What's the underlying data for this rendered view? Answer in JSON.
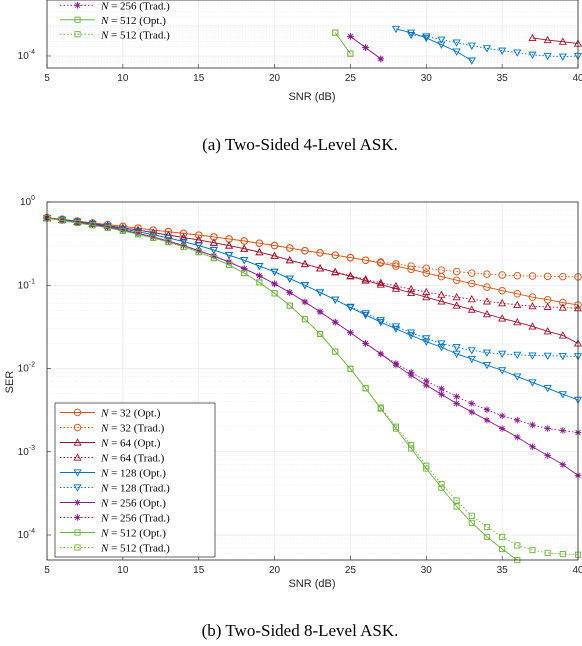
{
  "captions": {
    "a": "(a) Two-Sided 4-Level ASK.",
    "b": "(b) Two-Sided 8-Level ASK."
  },
  "chart_data": [
    {
      "type": "line",
      "title": "",
      "caption": "(a) Two-Sided 4-Level ASK.",
      "xlabel": "SNR (dB)",
      "ylabel": "",
      "xlim": [
        5,
        40
      ],
      "ylim_log10": [
        -4.4,
        0
      ],
      "y_scale": "log",
      "grid": true,
      "x_ticks": [
        "5",
        "10",
        "15",
        "20",
        "25",
        "30",
        "35",
        "40"
      ],
      "y_tick_labels": [
        {
          "base": "10",
          "exp": "-4"
        }
      ],
      "legend_visible": [
        {
          "N": "256",
          "kind": "(Trad.)"
        },
        {
          "N": "512",
          "kind": "(Opt.)"
        },
        {
          "N": "512",
          "kind": "(Trad.)"
        }
      ],
      "series": [
        {
          "name": "N = 256 (Opt.)",
          "color": "#8b1a8b",
          "marker": "star",
          "dash": "solid",
          "x": [
            25,
            26,
            27
          ],
          "y": [
            0.00045,
            0.00019,
            8e-05
          ]
        },
        {
          "name": "N = 256 (Trad.)",
          "color": "#8b1a8b",
          "marker": "star",
          "dash": "dotted",
          "x": [
            25,
            26,
            27
          ],
          "y": [
            0.00045,
            0.00019,
            8e-05
          ]
        },
        {
          "name": "N = 512 (Opt.)",
          "color": "#6db33f",
          "marker": "square",
          "dash": "solid",
          "x": [
            24,
            25
          ],
          "y": [
            0.0006,
            0.00012
          ]
        },
        {
          "name": "N = 512 (Trad.)",
          "color": "#6db33f",
          "marker": "square",
          "dash": "dotted",
          "x": [
            24,
            25
          ],
          "y": [
            0.0006,
            0.00012
          ]
        },
        {
          "name": "N = 128 (Opt.)",
          "color": "#0072bd",
          "marker": "tri-down",
          "dash": "solid",
          "x": [
            28,
            29,
            30,
            31,
            32,
            33
          ],
          "y": [
            0.0008,
            0.0006,
            0.0004,
            0.00024,
            0.00014,
            7e-05
          ]
        },
        {
          "name": "N = 128 (Trad.)",
          "color": "#0072bd",
          "marker": "tri-down",
          "dash": "dotted",
          "x": [
            29,
            30,
            31,
            32,
            33,
            34,
            35,
            36,
            37,
            38,
            39,
            40
          ],
          "y": [
            0.0005,
            0.00045,
            0.00035,
            0.00028,
            0.00022,
            0.00018,
            0.00015,
            0.00013,
            0.00011,
            0.0001,
            9.5e-05,
            0.0001
          ]
        },
        {
          "name": "N = 64 (Opt.)",
          "color": "#a2142f",
          "marker": "triangle",
          "dash": "solid",
          "x": [
            37,
            38,
            39,
            40
          ],
          "y": [
            0.0004,
            0.00034,
            0.0003,
            0.00026
          ]
        }
      ]
    },
    {
      "type": "line",
      "title": "",
      "caption": "(b) Two-Sided 8-Level ASK.",
      "xlabel": "SNR (dB)",
      "ylabel": "SER",
      "xlim": [
        5,
        40
      ],
      "ylim_log10": [
        -4.3,
        0
      ],
      "y_scale": "log",
      "grid": true,
      "legend": "bottom-left",
      "x_ticks": [
        "5",
        "10",
        "15",
        "20",
        "25",
        "30",
        "35",
        "40"
      ],
      "y_tick_labels": [
        {
          "base": "10",
          "exp": "0"
        },
        {
          "base": "10",
          "exp": "-1"
        },
        {
          "base": "10",
          "exp": "-2"
        },
        {
          "base": "10",
          "exp": "-3"
        },
        {
          "base": "10",
          "exp": "-4"
        }
      ],
      "legend_entries": [
        {
          "N": "32",
          "kind": "(Opt.)"
        },
        {
          "N": "32",
          "kind": "(Trad.)"
        },
        {
          "N": "64",
          "kind": "(Opt.)"
        },
        {
          "N": "64",
          "kind": "(Trad.)"
        },
        {
          "N": "128",
          "kind": "(Opt.)"
        },
        {
          "N": "128",
          "kind": "(Trad.)"
        },
        {
          "N": "256",
          "kind": "(Opt.)"
        },
        {
          "N": "256",
          "kind": "(Trad.)"
        },
        {
          "N": "512",
          "kind": "(Opt.)"
        },
        {
          "N": "512",
          "kind": "(Trad.)"
        }
      ],
      "series": [
        {
          "name": "N = 32 (Opt.)",
          "color": "#d95319",
          "marker": "circle",
          "dash": "solid",
          "x": [
            5,
            6,
            7,
            8,
            9,
            10,
            11,
            12,
            13,
            14,
            15,
            16,
            17,
            18,
            19,
            20,
            21,
            22,
            23,
            24,
            25,
            26,
            27,
            28,
            29,
            30,
            31,
            32,
            33,
            34,
            35,
            36,
            37,
            38,
            39,
            40
          ],
          "y": [
            0.65,
            0.62,
            0.59,
            0.56,
            0.535,
            0.51,
            0.485,
            0.46,
            0.44,
            0.42,
            0.4,
            0.38,
            0.36,
            0.34,
            0.32,
            0.3,
            0.28,
            0.26,
            0.245,
            0.23,
            0.215,
            0.2,
            0.185,
            0.17,
            0.155,
            0.14,
            0.127,
            0.115,
            0.105,
            0.095,
            0.086,
            0.079,
            0.072,
            0.067,
            0.062,
            0.058
          ]
        },
        {
          "name": "N = 32 (Trad.)",
          "color": "#d95319",
          "marker": "circle",
          "dash": "dotted",
          "x": [
            5,
            6,
            7,
            8,
            9,
            10,
            11,
            12,
            13,
            14,
            15,
            16,
            17,
            18,
            19,
            20,
            21,
            22,
            23,
            24,
            25,
            26,
            27,
            28,
            29,
            30,
            31,
            32,
            33,
            34,
            35,
            36,
            37,
            38,
            39,
            40
          ],
          "y": [
            0.65,
            0.62,
            0.59,
            0.56,
            0.535,
            0.51,
            0.485,
            0.46,
            0.44,
            0.42,
            0.4,
            0.38,
            0.36,
            0.34,
            0.32,
            0.3,
            0.28,
            0.26,
            0.245,
            0.23,
            0.215,
            0.2,
            0.19,
            0.18,
            0.17,
            0.16,
            0.152,
            0.146,
            0.14,
            0.136,
            0.133,
            0.13,
            0.129,
            0.128,
            0.127,
            0.126
          ]
        },
        {
          "name": "N = 64 (Opt.)",
          "color": "#a2142f",
          "marker": "triangle",
          "dash": "solid",
          "x": [
            5,
            6,
            7,
            8,
            9,
            10,
            11,
            12,
            13,
            14,
            15,
            16,
            17,
            18,
            19,
            20,
            21,
            22,
            23,
            24,
            25,
            26,
            27,
            28,
            29,
            30,
            31,
            32,
            33,
            34,
            35,
            36,
            37,
            38,
            39,
            40
          ],
          "y": [
            0.64,
            0.61,
            0.58,
            0.55,
            0.52,
            0.49,
            0.46,
            0.43,
            0.4,
            0.375,
            0.35,
            0.325,
            0.3,
            0.275,
            0.25,
            0.225,
            0.2,
            0.18,
            0.16,
            0.143,
            0.128,
            0.114,
            0.102,
            0.091,
            0.081,
            0.072,
            0.064,
            0.057,
            0.051,
            0.045,
            0.04,
            0.036,
            0.032,
            0.028,
            0.025,
            0.02
          ]
        },
        {
          "name": "N = 64 (Trad.)",
          "color": "#a2142f",
          "marker": "triangle",
          "dash": "dotted",
          "x": [
            5,
            6,
            7,
            8,
            9,
            10,
            11,
            12,
            13,
            14,
            15,
            16,
            17,
            18,
            19,
            20,
            21,
            22,
            23,
            24,
            25,
            26,
            27,
            28,
            29,
            30,
            31,
            32,
            33,
            34,
            35,
            36,
            37,
            38,
            39,
            40
          ],
          "y": [
            0.64,
            0.61,
            0.58,
            0.55,
            0.52,
            0.49,
            0.46,
            0.43,
            0.4,
            0.375,
            0.35,
            0.325,
            0.3,
            0.275,
            0.25,
            0.225,
            0.2,
            0.18,
            0.16,
            0.145,
            0.13,
            0.118,
            0.107,
            0.098,
            0.09,
            0.083,
            0.077,
            0.072,
            0.068,
            0.064,
            0.061,
            0.058,
            0.056,
            0.055,
            0.054,
            0.053
          ]
        },
        {
          "name": "N = 128 (Opt.)",
          "color": "#0072bd",
          "marker": "tri-down",
          "dash": "solid",
          "x": [
            5,
            6,
            7,
            8,
            9,
            10,
            11,
            12,
            13,
            14,
            15,
            16,
            17,
            18,
            19,
            20,
            21,
            22,
            23,
            24,
            25,
            26,
            27,
            28,
            29,
            30,
            31,
            32,
            33,
            34,
            35,
            36,
            37,
            38,
            39,
            40
          ],
          "y": [
            0.64,
            0.61,
            0.58,
            0.545,
            0.51,
            0.475,
            0.44,
            0.405,
            0.37,
            0.335,
            0.3,
            0.265,
            0.23,
            0.2,
            0.17,
            0.145,
            0.12,
            0.1,
            0.082,
            0.067,
            0.054,
            0.044,
            0.036,
            0.03,
            0.025,
            0.021,
            0.018,
            0.015,
            0.013,
            0.011,
            0.0095,
            0.008,
            0.0068,
            0.0058,
            0.0049,
            0.0042
          ]
        },
        {
          "name": "N = 128 (Trad.)",
          "color": "#0072bd",
          "marker": "tri-down",
          "dash": "dotted",
          "x": [
            5,
            6,
            7,
            8,
            9,
            10,
            11,
            12,
            13,
            14,
            15,
            16,
            17,
            18,
            19,
            20,
            21,
            22,
            23,
            24,
            25,
            26,
            27,
            28,
            29,
            30,
            31,
            32,
            33,
            34,
            35,
            36,
            37,
            38,
            39,
            40
          ],
          "y": [
            0.64,
            0.61,
            0.58,
            0.545,
            0.51,
            0.475,
            0.44,
            0.405,
            0.37,
            0.335,
            0.3,
            0.265,
            0.23,
            0.2,
            0.17,
            0.145,
            0.12,
            0.1,
            0.082,
            0.067,
            0.055,
            0.046,
            0.038,
            0.032,
            0.027,
            0.023,
            0.02,
            0.018,
            0.0165,
            0.0155,
            0.015,
            0.0146,
            0.0143,
            0.0142,
            0.0141,
            0.014
          ]
        },
        {
          "name": "N = 256 (Opt.)",
          "color": "#8b1a8b",
          "marker": "star",
          "dash": "solid",
          "x": [
            5,
            6,
            7,
            8,
            9,
            10,
            11,
            12,
            13,
            14,
            15,
            16,
            17,
            18,
            19,
            20,
            21,
            22,
            23,
            24,
            25,
            26,
            27,
            28,
            29,
            30,
            31,
            32,
            33,
            34,
            35,
            36,
            37,
            38,
            39,
            40
          ],
          "y": [
            0.64,
            0.6,
            0.57,
            0.535,
            0.5,
            0.46,
            0.42,
            0.38,
            0.34,
            0.3,
            0.26,
            0.225,
            0.19,
            0.158,
            0.13,
            0.104,
            0.082,
            0.063,
            0.048,
            0.036,
            0.027,
            0.02,
            0.015,
            0.011,
            0.0083,
            0.0063,
            0.0049,
            0.0038,
            0.003,
            0.0024,
            0.0019,
            0.0015,
            0.00115,
            0.0009,
            0.0007,
            0.00052
          ]
        },
        {
          "name": "N = 256 (Trad.)",
          "color": "#8b1a8b",
          "marker": "star",
          "dash": "dotted",
          "x": [
            5,
            6,
            7,
            8,
            9,
            10,
            11,
            12,
            13,
            14,
            15,
            16,
            17,
            18,
            19,
            20,
            21,
            22,
            23,
            24,
            25,
            26,
            27,
            28,
            29,
            30,
            31,
            32,
            33,
            34,
            35,
            36,
            37,
            38,
            39,
            40
          ],
          "y": [
            0.64,
            0.6,
            0.57,
            0.535,
            0.5,
            0.46,
            0.42,
            0.38,
            0.34,
            0.3,
            0.26,
            0.225,
            0.19,
            0.158,
            0.13,
            0.104,
            0.082,
            0.063,
            0.048,
            0.036,
            0.027,
            0.02,
            0.015,
            0.0115,
            0.009,
            0.0071,
            0.0057,
            0.0046,
            0.0038,
            0.0032,
            0.0027,
            0.0024,
            0.0021,
            0.0019,
            0.0018,
            0.0017
          ]
        },
        {
          "name": "N = 512 (Opt.)",
          "color": "#6db33f",
          "marker": "square",
          "dash": "solid",
          "x": [
            5,
            6,
            7,
            8,
            9,
            10,
            11,
            12,
            13,
            14,
            15,
            16,
            17,
            18,
            19,
            20,
            21,
            22,
            23,
            24,
            25,
            26,
            27,
            28,
            29,
            30,
            31,
            32,
            33,
            34,
            35,
            36
          ],
          "y": [
            0.64,
            0.6,
            0.56,
            0.525,
            0.49,
            0.45,
            0.41,
            0.37,
            0.33,
            0.29,
            0.25,
            0.212,
            0.175,
            0.14,
            0.108,
            0.08,
            0.057,
            0.039,
            0.026,
            0.016,
            0.0099,
            0.0058,
            0.0033,
            0.0019,
            0.0011,
            0.00063,
            0.00037,
            0.00022,
            0.00014,
            9.5e-05,
            6.8e-05,
            5e-05
          ]
        },
        {
          "name": "N = 512 (Trad.)",
          "color": "#6db33f",
          "marker": "square",
          "dash": "dotted",
          "x": [
            5,
            6,
            7,
            8,
            9,
            10,
            11,
            12,
            13,
            14,
            15,
            16,
            17,
            18,
            19,
            20,
            21,
            22,
            23,
            24,
            25,
            26,
            27,
            28,
            29,
            30,
            31,
            32,
            33,
            34,
            35,
            36,
            37,
            38,
            39,
            40
          ],
          "y": [
            0.64,
            0.6,
            0.56,
            0.525,
            0.49,
            0.45,
            0.41,
            0.37,
            0.33,
            0.29,
            0.25,
            0.212,
            0.175,
            0.14,
            0.108,
            0.08,
            0.057,
            0.039,
            0.026,
            0.016,
            0.0099,
            0.0058,
            0.0034,
            0.002,
            0.0012,
            0.00068,
            0.00041,
            0.00026,
            0.00017,
            0.000125,
            9.5e-05,
            7.5e-05,
            6.6e-05,
            6.1e-05,
            5.9e-05,
            5.8e-05
          ]
        }
      ]
    }
  ]
}
